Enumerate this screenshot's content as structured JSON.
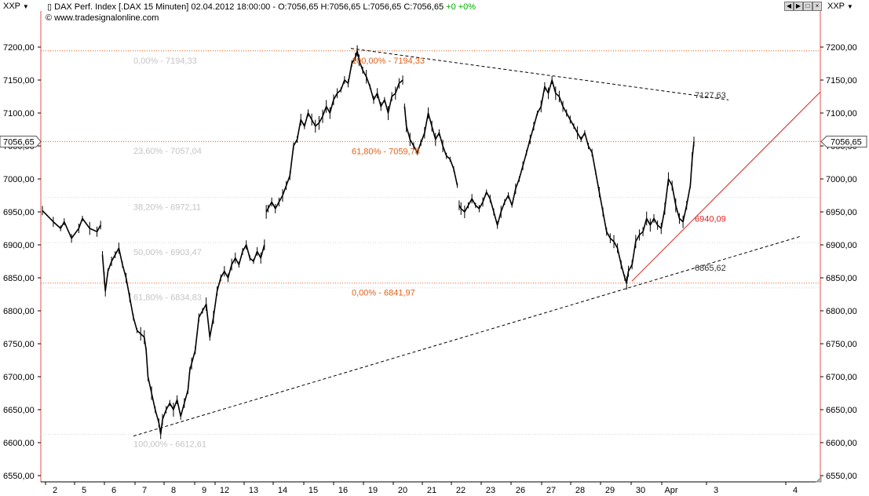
{
  "header": {
    "symbol_left": "XXP",
    "symbol_right": "XXP",
    "title_text": "DAX Perf. Index [.DAX  15 Minuten] 02.04.2012 18:00:00 - O:7056,65 H:7056,65 L:7056,65 C:7056,65",
    "change_text": "+0 +0%",
    "source": "www.tradesignalonline.com",
    "icons": [
      "menu-icon",
      "copyright-icon",
      "nav-left-icon",
      "nav-right-icon",
      "maximize-icon",
      "close-icon"
    ]
  },
  "colors": {
    "price": "#000000",
    "fib_grey": "#c0c0c0",
    "fib_orange": "#e0621c",
    "support_red": "#dd2222",
    "border_red": "#e05050",
    "gridline": "#d8d8d8",
    "change_green": "#00aa00"
  },
  "chart_data": {
    "type": "line",
    "title": "DAX Perf. Index [.DAX  15 Minuten]",
    "ylim": [
      6540,
      7250
    ],
    "x_ticks": [
      "2",
      "5",
      "6",
      "7",
      "8",
      "9",
      "12",
      "13",
      "14",
      "15",
      "16",
      "19",
      "20",
      "21",
      "22",
      "23",
      "26",
      "27",
      "28",
      "29",
      "30",
      "Apr",
      "3",
      "4"
    ],
    "y_ticks": [
      "6550,00",
      "6600,00",
      "6650,00",
      "6700,00",
      "6750,00",
      "6800,00",
      "6850,00",
      "6900,00",
      "6950,00",
      "7000,00",
      "7050,00",
      "7100,00",
      "7150,00",
      "7200,00"
    ],
    "last_price_label": "7056,65",
    "series": [
      {
        "values": [
          [
            0,
            6952
          ],
          [
            3,
            6935
          ],
          [
            5,
            6925
          ],
          [
            6,
            6935
          ],
          [
            8,
            6910
          ],
          [
            10,
            6925
          ],
          [
            11,
            6940
          ],
          [
            13,
            6925
          ],
          [
            15,
            6920
          ],
          [
            16,
            6930
          ],
          [
            16.5,
            6885
          ],
          [
            17,
            6850
          ],
          [
            17.3,
            6830
          ],
          [
            18,
            6860
          ],
          [
            19,
            6875
          ],
          [
            20,
            6885
          ],
          [
            21,
            6895
          ],
          [
            22,
            6870
          ],
          [
            23,
            6850
          ],
          [
            24,
            6820
          ],
          [
            25,
            6790
          ],
          [
            26,
            6770
          ],
          [
            27,
            6765
          ],
          [
            28,
            6760
          ],
          [
            28.5,
            6740
          ],
          [
            29,
            6700
          ],
          [
            30,
            6675
          ],
          [
            31,
            6650
          ],
          [
            32,
            6630
          ],
          [
            32.5,
            6613
          ],
          [
            33,
            6635
          ],
          [
            34,
            6650
          ],
          [
            35,
            6660
          ],
          [
            36,
            6650
          ],
          [
            37,
            6665
          ],
          [
            38,
            6640
          ],
          [
            39,
            6660
          ],
          [
            40,
            6680
          ],
          [
            40.5,
            6710
          ],
          [
            41,
            6720
          ],
          [
            42,
            6740
          ],
          [
            43,
            6790
          ],
          [
            44,
            6800
          ],
          [
            45,
            6810
          ],
          [
            46,
            6760
          ],
          [
            47,
            6790
          ],
          [
            48,
            6830
          ],
          [
            49,
            6850
          ],
          [
            50,
            6860
          ],
          [
            51,
            6850
          ],
          [
            52,
            6870
          ],
          [
            53,
            6880
          ],
          [
            54,
            6870
          ],
          [
            55,
            6890
          ],
          [
            56,
            6900
          ],
          [
            57,
            6880
          ],
          [
            58,
            6875
          ],
          [
            59,
            6890
          ],
          [
            60,
            6880
          ],
          [
            61,
            6900
          ],
          [
            61.5,
            6950
          ],
          [
            62,
            6955
          ],
          [
            63,
            6965
          ],
          [
            64,
            6955
          ],
          [
            65,
            6965
          ],
          [
            66,
            6975
          ],
          [
            67,
            6990
          ],
          [
            68,
            7005
          ],
          [
            69,
            7050
          ],
          [
            70,
            7060
          ],
          [
            71,
            7090
          ],
          [
            72,
            7080
          ],
          [
            73,
            7100
          ],
          [
            74,
            7090
          ],
          [
            75,
            7080
          ],
          [
            76,
            7085
          ],
          [
            77,
            7095
          ],
          [
            78,
            7110
          ],
          [
            79,
            7100
          ],
          [
            80,
            7120
          ],
          [
            81,
            7130
          ],
          [
            82,
            7135
          ],
          [
            83,
            7150
          ],
          [
            84,
            7145
          ],
          [
            85,
            7175
          ],
          [
            86,
            7185
          ],
          [
            86.5,
            7194.33
          ],
          [
            87,
            7180
          ],
          [
            88,
            7165
          ],
          [
            89,
            7155
          ],
          [
            90,
            7140
          ],
          [
            91,
            7120
          ],
          [
            92,
            7130
          ],
          [
            93,
            7110
          ],
          [
            94,
            7120
          ],
          [
            95,
            7100
          ],
          [
            96,
            7125
          ],
          [
            97,
            7130
          ],
          [
            98,
            7145
          ],
          [
            99,
            7150
          ],
          [
            99.5,
            7110
          ],
          [
            100,
            7080
          ],
          [
            101,
            7060
          ],
          [
            102,
            7050
          ],
          [
            103,
            7040
          ],
          [
            104,
            7055
          ],
          [
            105,
            7070
          ],
          [
            106,
            7100
          ],
          [
            107,
            7080
          ],
          [
            108,
            7060
          ],
          [
            109,
            7070
          ],
          [
            110,
            7050
          ],
          [
            111,
            7035
          ],
          [
            112,
            7030
          ],
          [
            113,
            7015
          ],
          [
            114,
            6990
          ],
          [
            114.5,
            6960
          ],
          [
            115,
            6955
          ],
          [
            116,
            6950
          ],
          [
            117,
            6960
          ],
          [
            118,
            6970
          ],
          [
            119,
            6960
          ],
          [
            120,
            6955
          ],
          [
            121,
            6965
          ],
          [
            122,
            6980
          ],
          [
            123,
            6970
          ],
          [
            124,
            6950
          ],
          [
            125,
            6930
          ],
          [
            126,
            6950
          ],
          [
            127,
            6965
          ],
          [
            128,
            6975
          ],
          [
            129,
            6960
          ],
          [
            130,
            6985
          ],
          [
            131,
            7000
          ],
          [
            132,
            7020
          ],
          [
            133,
            7040
          ],
          [
            134,
            7060
          ],
          [
            135,
            7080
          ],
          [
            136,
            7100
          ],
          [
            137,
            7110
          ],
          [
            138,
            7140
          ],
          [
            139,
            7130
          ],
          [
            140,
            7150
          ],
          [
            141,
            7130
          ],
          [
            142,
            7125
          ],
          [
            143,
            7110
          ],
          [
            144,
            7100
          ],
          [
            145,
            7090
          ],
          [
            146,
            7080
          ],
          [
            147,
            7070
          ],
          [
            148,
            7060
          ],
          [
            149,
            7070
          ],
          [
            150,
            7050
          ],
          [
            151,
            7040
          ],
          [
            152,
            7010
          ],
          [
            153,
            6980
          ],
          [
            154,
            6950
          ],
          [
            155,
            6920
          ],
          [
            156,
            6910
          ],
          [
            157,
            6905
          ],
          [
            158,
            6895
          ],
          [
            159,
            6870
          ],
          [
            160,
            6850
          ],
          [
            160.5,
            6842
          ],
          [
            161,
            6860
          ],
          [
            162,
            6870
          ],
          [
            163,
            6905
          ],
          [
            164,
            6915
          ],
          [
            165,
            6920
          ],
          [
            166,
            6940
          ],
          [
            167,
            6930
          ],
          [
            168,
            6940
          ],
          [
            169,
            6930
          ],
          [
            170,
            6925
          ],
          [
            171,
            6955
          ],
          [
            172,
            7000
          ],
          [
            173,
            6990
          ],
          [
            174,
            6960
          ],
          [
            175,
            6940
          ],
          [
            176,
            6935
          ],
          [
            177,
            6960
          ],
          [
            178,
            6990
          ],
          [
            178.5,
            7030
          ],
          [
            179,
            7056.65
          ]
        ]
      }
    ],
    "annotations": {
      "fib_grey": [
        "0,00% - 7194,33",
        "23,60% - 7057,04",
        "38,20% - 6972,11",
        "50,00% - 6903,47",
        "61,80% - 6834,83",
        "100,00% - 6612,61"
      ],
      "fib_orange": [
        "100,00% - 7194,33",
        "61,80% - 7059,78",
        "0,00% - 6841,97"
      ],
      "trendline_labels": [
        "7127,63",
        "6865,62"
      ],
      "support_label": "6940,09"
    }
  }
}
